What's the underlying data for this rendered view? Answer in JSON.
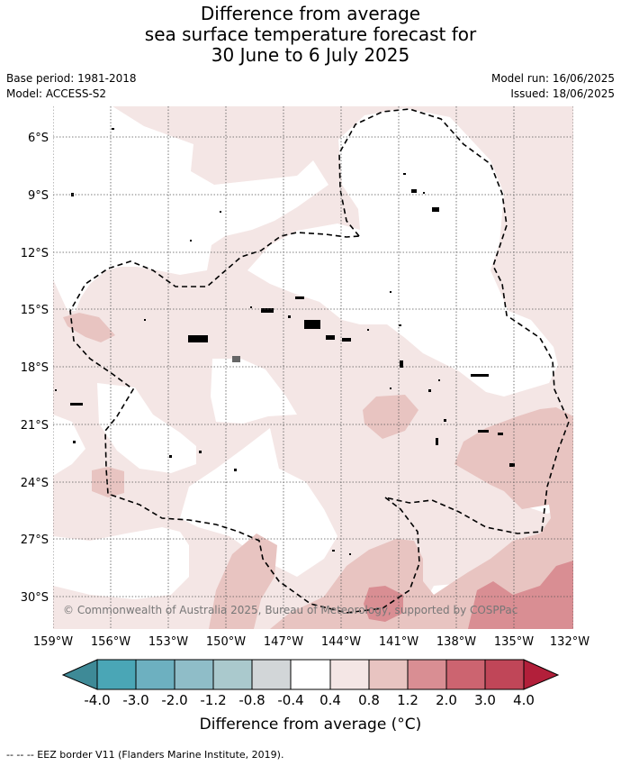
{
  "title_lines": [
    "Difference from average",
    "sea surface temperature forecast for",
    "30 June to 6 July 2025"
  ],
  "meta": {
    "base_period": "Base period: 1981-2018",
    "model": "Model: ACCESS-S2",
    "model_run": "Model run: 16/06/2025",
    "issued": "Issued: 18/06/2025"
  },
  "map": {
    "lat_ticks": [
      "6°S",
      "9°S",
      "12°S",
      "15°S",
      "18°S",
      "21°S",
      "24°S",
      "27°S",
      "30°S"
    ],
    "lon_ticks": [
      "159°W",
      "156°W",
      "153°W",
      "150°W",
      "147°W",
      "144°W",
      "141°W",
      "138°W",
      "135°W",
      "132°W"
    ],
    "copyright": "© Commonwealth of Australia 2025, Bureau of Meteorology, supported by COSPPac"
  },
  "colorbar": {
    "labels": [
      "-4.0",
      "-3.0",
      "-2.0",
      "-1.2",
      "-0.8",
      "-0.4",
      "0.4",
      "0.8",
      "1.2",
      "2.0",
      "3.0",
      "4.0"
    ],
    "colors": [
      "#3e8a97",
      "#4aa6b6",
      "#6db0c0",
      "#8fbdc8",
      "#aac9cd",
      "#d2d6d8",
      "#ffffff",
      "#f4e6e5",
      "#e8c4c1",
      "#d98e93",
      "#cc6470",
      "#c04658",
      "#b21f3a"
    ],
    "title": "Difference from average (°C)"
  },
  "footnote": "--  --  -- EEZ border V11 (Flanders Marine Institute, 2019)."
}
